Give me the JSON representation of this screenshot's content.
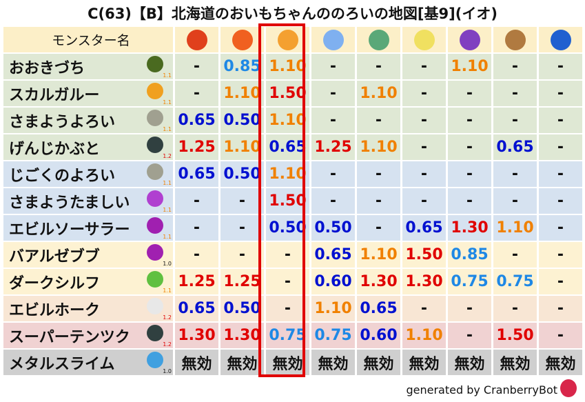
{
  "title": "C(63)【B】北海道のおいもちゃんののろいの地図[基9](イオ)",
  "header": {
    "name_label": "モンスター名",
    "columns": [
      {
        "icon": "fire-ball-icon",
        "color": "#e0401c"
      },
      {
        "icon": "flame-icon",
        "color": "#f06020"
      },
      {
        "icon": "explosion-icon",
        "color": "#f4a030"
      },
      {
        "icon": "ice-flower-icon",
        "color": "#7fb0f0"
      },
      {
        "icon": "tornado-icon",
        "color": "#5aa878"
      },
      {
        "icon": "lightning-star-icon",
        "color": "#f0e060"
      },
      {
        "icon": "dark-swirl-icon",
        "color": "#8040c0"
      },
      {
        "icon": "rock-icon",
        "color": "#b07a40"
      },
      {
        "icon": "water-wave-icon",
        "color": "#2060d0"
      }
    ]
  },
  "highlight_column": 2,
  "value_colors": {
    "weak_red": "#e00000",
    "weak_orange": "#f08000",
    "resist_dark_blue": "#0010d0",
    "resist_light_blue": "#1e88e5",
    "neutral": "#111111"
  },
  "rows": [
    {
      "name": "おおきづち",
      "level": "1.1",
      "bg": "#dfe8d4",
      "icon": "club-monster-icon",
      "icon_color": "#4a6a20",
      "values": [
        "-",
        "0.85",
        "1.10",
        "-",
        "-",
        "-",
        "1.10",
        "-",
        "-"
      ]
    },
    {
      "name": "スカルガルー",
      "level": "1.1",
      "bg": "#dfe8d4",
      "icon": "paw-icon",
      "icon_color": "#f0a020",
      "values": [
        "-",
        "1.10",
        "1.50",
        "-",
        "1.10",
        "-",
        "-",
        "-",
        "-"
      ]
    },
    {
      "name": "さまようよろい",
      "level": "1.1",
      "bg": "#dfe8d4",
      "icon": "wall-icon",
      "icon_color": "#a0a090",
      "values": [
        "0.65",
        "0.50",
        "1.10",
        "-",
        "-",
        "-",
        "-",
        "-",
        "-"
      ]
    },
    {
      "name": "げんじかぶと",
      "level": "1.2",
      "bg": "#dfe8d4",
      "icon": "insect-icon",
      "icon_color": "#304040",
      "values": [
        "1.25",
        "1.10",
        "0.65",
        "1.25",
        "1.10",
        "-",
        "-",
        "0.65",
        "-"
      ]
    },
    {
      "name": "じごくのよろい",
      "level": "1.1",
      "bg": "#d6e2f0",
      "icon": "wall-icon",
      "icon_color": "#a0a090",
      "values": [
        "0.65",
        "0.50",
        "1.10",
        "-",
        "-",
        "-",
        "-",
        "-",
        "-"
      ]
    },
    {
      "name": "さまようたましい",
      "level": "1.1",
      "bg": "#d6e2f0",
      "icon": "ghost-icon",
      "icon_color": "#b040d0",
      "values": [
        "-",
        "-",
        "1.50",
        "-",
        "-",
        "-",
        "-",
        "-",
        "-"
      ]
    },
    {
      "name": "エビルソーサラー",
      "level": "1.1",
      "bg": "#d6e2f0",
      "icon": "trident-icon",
      "icon_color": "#a020b0",
      "values": [
        "-",
        "-",
        "0.50",
        "0.50",
        "-",
        "0.65",
        "1.30",
        "1.10",
        "-"
      ]
    },
    {
      "name": "バアルゼブブ",
      "level": "1.0",
      "bg": "#fdf2d2",
      "icon": "trident-icon",
      "icon_color": "#a020b0",
      "values": [
        "-",
        "-",
        "-",
        "0.65",
        "1.10",
        "1.50",
        "0.85",
        "-",
        "-"
      ]
    },
    {
      "name": "ダークシルフ",
      "level": "1.1",
      "bg": "#fdf2d2",
      "icon": "leaf-icon",
      "icon_color": "#60c040",
      "values": [
        "1.25",
        "1.25",
        "-",
        "0.60",
        "1.30",
        "1.30",
        "0.75",
        "0.75",
        "-"
      ]
    },
    {
      "name": "エビルホーク",
      "level": "1.2",
      "bg": "#f8e6d4",
      "icon": "wing-icon",
      "icon_color": "#e8e8e8",
      "values": [
        "0.65",
        "0.50",
        "-",
        "1.10",
        "0.65",
        "-",
        "-",
        "-",
        "-"
      ]
    },
    {
      "name": "スーパーテンツク",
      "level": "1.2",
      "bg": "#f0d2d2",
      "icon": "insect-icon",
      "icon_color": "#304040",
      "values": [
        "1.30",
        "1.30",
        "0.75",
        "0.75",
        "0.60",
        "1.10",
        "-",
        "1.50",
        "-"
      ]
    },
    {
      "name": "メタルスライム",
      "level": "1.0",
      "bg": "#cfcfcf",
      "icon": "slime-icon",
      "icon_color": "#40a0e0",
      "values": [
        "無効",
        "無効",
        "無効",
        "無効",
        "無効",
        "無効",
        "無効",
        "無効",
        "無効"
      ]
    }
  ],
  "footer": "generated by CranberryBot"
}
